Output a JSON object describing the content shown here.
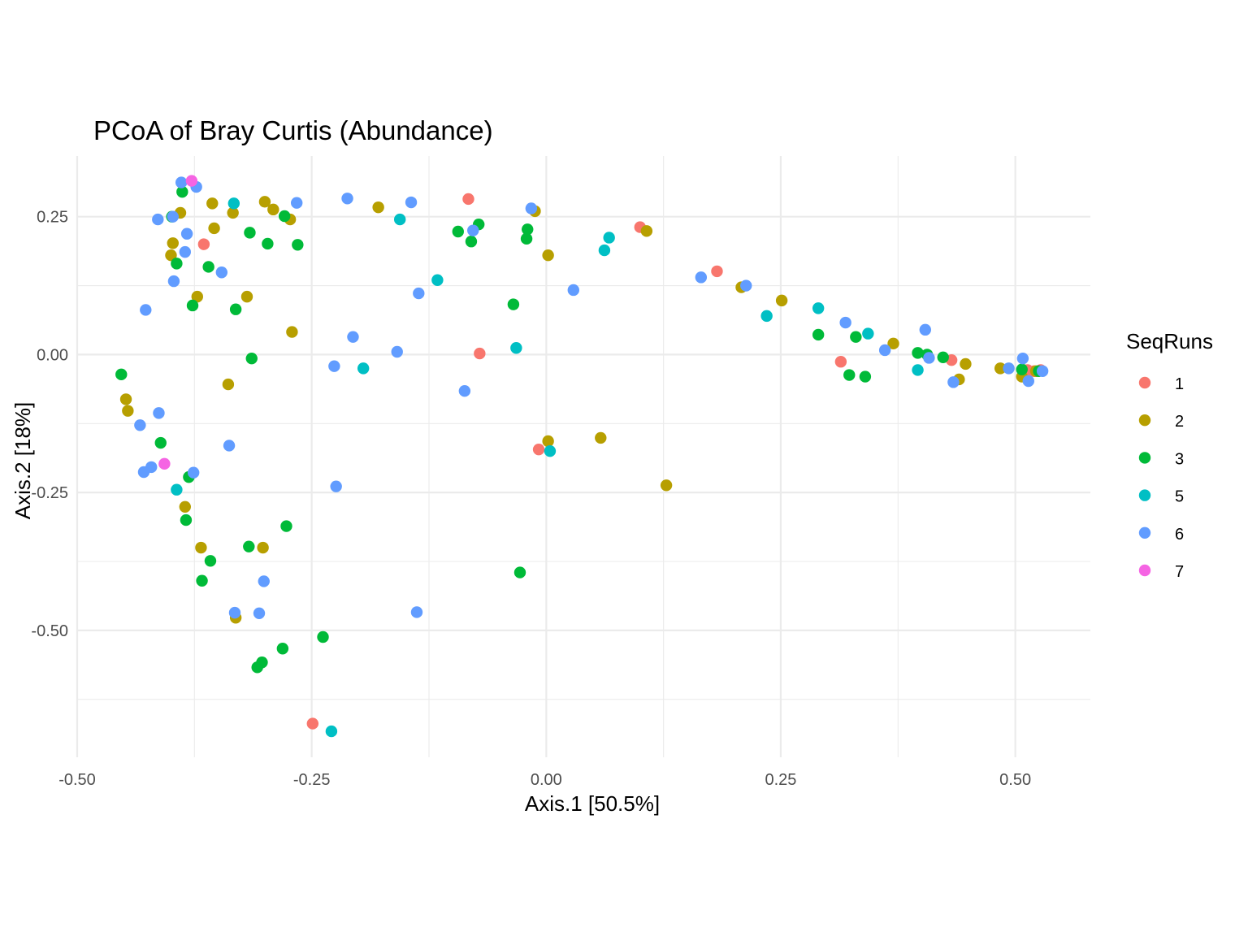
{
  "chart_data": {
    "type": "scatter",
    "title": "PCoA of Bray Curtis (Abundance)",
    "xlabel": "Axis.1   [50.5%]",
    "ylabel": "Axis.2   [18%]",
    "xlim": [
      -0.5,
      0.58
    ],
    "ylim": [
      -0.73,
      0.36
    ],
    "x_ticks": [
      -0.5,
      -0.25,
      0.0,
      0.25,
      0.5
    ],
    "x_tick_labels": [
      "-0.50",
      "-0.25",
      "0.00",
      "0.25",
      "0.50"
    ],
    "y_ticks": [
      0.25,
      0.0,
      -0.25,
      -0.5
    ],
    "y_tick_labels": [
      "0.25",
      "0.00",
      "-0.25",
      "-0.50"
    ],
    "grid": true,
    "legend": {
      "title": "SeqRuns",
      "position": "right"
    },
    "series": [
      {
        "name": "1",
        "color": "#F8766D",
        "points": [
          [
            -0.365,
            0.2
          ],
          [
            -0.083,
            0.282
          ],
          [
            -0.071,
            0.002
          ],
          [
            -0.008,
            -0.172
          ],
          [
            0.1,
            0.231
          ],
          [
            0.182,
            0.151
          ],
          [
            0.314,
            -0.013
          ],
          [
            0.432,
            -0.01
          ],
          [
            0.513,
            -0.028
          ],
          [
            0.52,
            -0.03
          ],
          [
            0.527,
            -0.028
          ],
          [
            -0.249,
            -0.669
          ]
        ]
      },
      {
        "name": "2",
        "color": "#B79F00",
        "points": [
          [
            -0.39,
            0.257
          ],
          [
            -0.398,
            0.202
          ],
          [
            -0.4,
            0.18
          ],
          [
            -0.356,
            0.274
          ],
          [
            -0.354,
            0.229
          ],
          [
            -0.334,
            0.257
          ],
          [
            -0.3,
            0.277
          ],
          [
            -0.291,
            0.263
          ],
          [
            -0.273,
            0.245
          ],
          [
            -0.372,
            0.105
          ],
          [
            -0.319,
            0.105
          ],
          [
            -0.271,
            0.041
          ],
          [
            -0.339,
            -0.054
          ],
          [
            -0.448,
            -0.081
          ],
          [
            -0.446,
            -0.102
          ],
          [
            -0.385,
            -0.276
          ],
          [
            -0.368,
            -0.35
          ],
          [
            -0.302,
            -0.35
          ],
          [
            -0.331,
            -0.477
          ],
          [
            -0.179,
            0.267
          ],
          [
            -0.012,
            0.26
          ],
          [
            0.002,
            0.18
          ],
          [
            0.107,
            0.224
          ],
          [
            0.208,
            0.122
          ],
          [
            0.251,
            0.098
          ],
          [
            0.37,
            0.02
          ],
          [
            0.44,
            -0.045
          ],
          [
            0.447,
            -0.017
          ],
          [
            0.484,
            -0.025
          ],
          [
            0.507,
            -0.04
          ],
          [
            0.522,
            -0.03
          ],
          [
            0.002,
            -0.157
          ],
          [
            0.058,
            -0.151
          ],
          [
            0.128,
            -0.237
          ]
        ]
      },
      {
        "name": "3",
        "color": "#00BA38",
        "points": [
          [
            -0.388,
            0.295
          ],
          [
            -0.399,
            0.25
          ],
          [
            -0.394,
            0.165
          ],
          [
            -0.36,
            0.159
          ],
          [
            -0.377,
            0.089
          ],
          [
            -0.331,
            0.082
          ],
          [
            -0.316,
            0.221
          ],
          [
            -0.297,
            0.201
          ],
          [
            -0.279,
            0.251
          ],
          [
            -0.265,
            0.199
          ],
          [
            -0.314,
            -0.007
          ],
          [
            -0.453,
            -0.036
          ],
          [
            -0.411,
            -0.16
          ],
          [
            -0.381,
            -0.222
          ],
          [
            -0.384,
            -0.3
          ],
          [
            -0.358,
            -0.374
          ],
          [
            -0.367,
            -0.41
          ],
          [
            -0.317,
            -0.348
          ],
          [
            -0.277,
            -0.311
          ],
          [
            -0.238,
            -0.512
          ],
          [
            -0.281,
            -0.533
          ],
          [
            -0.303,
            -0.558
          ],
          [
            -0.308,
            -0.567
          ],
          [
            -0.094,
            0.223
          ],
          [
            -0.08,
            0.205
          ],
          [
            -0.072,
            0.236
          ],
          [
            -0.02,
            0.227
          ],
          [
            -0.021,
            0.21
          ],
          [
            -0.035,
            0.091
          ],
          [
            -0.028,
            -0.395
          ],
          [
            0.29,
            0.036
          ],
          [
            0.33,
            0.032
          ],
          [
            0.323,
            -0.037
          ],
          [
            0.34,
            -0.04
          ],
          [
            0.396,
            0.003
          ],
          [
            0.406,
            0.0
          ],
          [
            0.423,
            -0.005
          ],
          [
            0.507,
            -0.027
          ],
          [
            0.525,
            -0.03
          ]
        ]
      },
      {
        "name": "5",
        "color": "#00BFC4",
        "points": [
          [
            -0.333,
            0.274
          ],
          [
            -0.156,
            0.245
          ],
          [
            -0.116,
            0.135
          ],
          [
            -0.195,
            -0.025
          ],
          [
            -0.032,
            0.012
          ],
          [
            0.062,
            0.189
          ],
          [
            0.067,
            0.212
          ],
          [
            0.004,
            -0.175
          ],
          [
            0.235,
            0.07
          ],
          [
            0.29,
            0.084
          ],
          [
            0.343,
            0.038
          ],
          [
            0.396,
            -0.028
          ],
          [
            -0.394,
            -0.245
          ],
          [
            -0.229,
            -0.683
          ]
        ]
      },
      {
        "name": "6",
        "color": "#619CFF",
        "points": [
          [
            -0.389,
            0.312
          ],
          [
            -0.373,
            0.304
          ],
          [
            -0.398,
            0.25
          ],
          [
            -0.414,
            0.245
          ],
          [
            -0.383,
            0.219
          ],
          [
            -0.385,
            0.186
          ],
          [
            -0.346,
            0.149
          ],
          [
            -0.397,
            0.133
          ],
          [
            -0.427,
            0.081
          ],
          [
            -0.266,
            0.275
          ],
          [
            -0.212,
            0.283
          ],
          [
            -0.144,
            0.276
          ],
          [
            -0.078,
            0.225
          ],
          [
            -0.016,
            0.265
          ],
          [
            -0.136,
            0.111
          ],
          [
            -0.206,
            0.032
          ],
          [
            -0.159,
            0.005
          ],
          [
            -0.226,
            -0.021
          ],
          [
            -0.087,
            -0.066
          ],
          [
            -0.413,
            -0.106
          ],
          [
            -0.433,
            -0.128
          ],
          [
            -0.338,
            -0.165
          ],
          [
            -0.421,
            -0.204
          ],
          [
            -0.429,
            -0.213
          ],
          [
            -0.376,
            -0.214
          ],
          [
            -0.224,
            -0.239
          ],
          [
            -0.301,
            -0.411
          ],
          [
            -0.332,
            -0.468
          ],
          [
            -0.306,
            -0.469
          ],
          [
            -0.138,
            -0.467
          ],
          [
            0.029,
            0.117
          ],
          [
            0.165,
            0.14
          ],
          [
            0.213,
            0.125
          ],
          [
            0.319,
            0.058
          ],
          [
            0.361,
            0.008
          ],
          [
            0.404,
            0.045
          ],
          [
            0.408,
            -0.006
          ],
          [
            0.434,
            -0.05
          ],
          [
            0.493,
            -0.025
          ],
          [
            0.508,
            -0.007
          ],
          [
            0.514,
            -0.048
          ],
          [
            0.529,
            -0.03
          ]
        ]
      },
      {
        "name": "7",
        "color": "#F564E3",
        "points": [
          [
            -0.378,
            0.315
          ],
          [
            -0.407,
            -0.198
          ]
        ]
      }
    ]
  }
}
